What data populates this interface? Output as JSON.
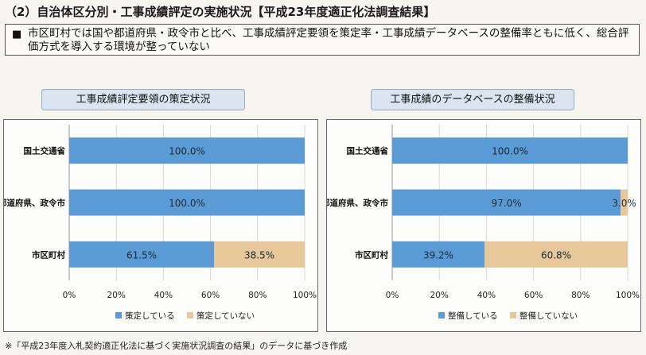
{
  "header": {
    "title": "（2）自治体区分別・工事成績評定の実施状況【平成23年度適正化法調査結果】"
  },
  "summary": {
    "bullet": "■",
    "text": "市区町村では国や都道府県・政令市と比べ、工事成績評定要領を策定率・工事成績データベースの整備率ともに低く、総合評価方式を導入する環境が整っていない"
  },
  "colors": {
    "primary": "#5b9bd5",
    "secondary": "#e8c79a"
  },
  "chart_data": [
    {
      "type": "bar",
      "orientation": "horizontal",
      "stacked": true,
      "title": "工事成績評定要領の策定状況",
      "categories": [
        "国土交通省",
        "都道府県、政令市",
        "市区町村"
      ],
      "series": [
        {
          "name": "策定している",
          "values": [
            100.0,
            100.0,
            61.5
          ],
          "labels": [
            "100.0%",
            "100.0%",
            "61.5%"
          ]
        },
        {
          "name": "策定していない",
          "values": [
            0,
            0,
            38.5
          ],
          "labels": [
            "",
            "",
            "38.5%"
          ]
        }
      ],
      "xlim": [
        0,
        100
      ],
      "x_ticks": [
        "0%",
        "20%",
        "40%",
        "60%",
        "80%",
        "100%"
      ],
      "legend": "bottom"
    },
    {
      "type": "bar",
      "orientation": "horizontal",
      "stacked": true,
      "title": "工事成績のデータベースの整備状況",
      "categories": [
        "国土交通省",
        "都道府県、政令市",
        "市区町村"
      ],
      "series": [
        {
          "name": "整備している",
          "values": [
            100.0,
            97.0,
            39.2
          ],
          "labels": [
            "100.0%",
            "97.0%",
            "39.2%"
          ]
        },
        {
          "name": "整備していない",
          "values": [
            0,
            3.0,
            60.8
          ],
          "labels": [
            "",
            "3.0%",
            "60.8%"
          ]
        }
      ],
      "xlim": [
        0,
        100
      ],
      "x_ticks": [
        "0%",
        "20%",
        "40%",
        "60%",
        "80%",
        "100%"
      ],
      "legend": "bottom"
    }
  ],
  "footnote": "※「平成23年度入札契約適正化法に基づく実施状況調査の結果」のデータに基づき作成"
}
